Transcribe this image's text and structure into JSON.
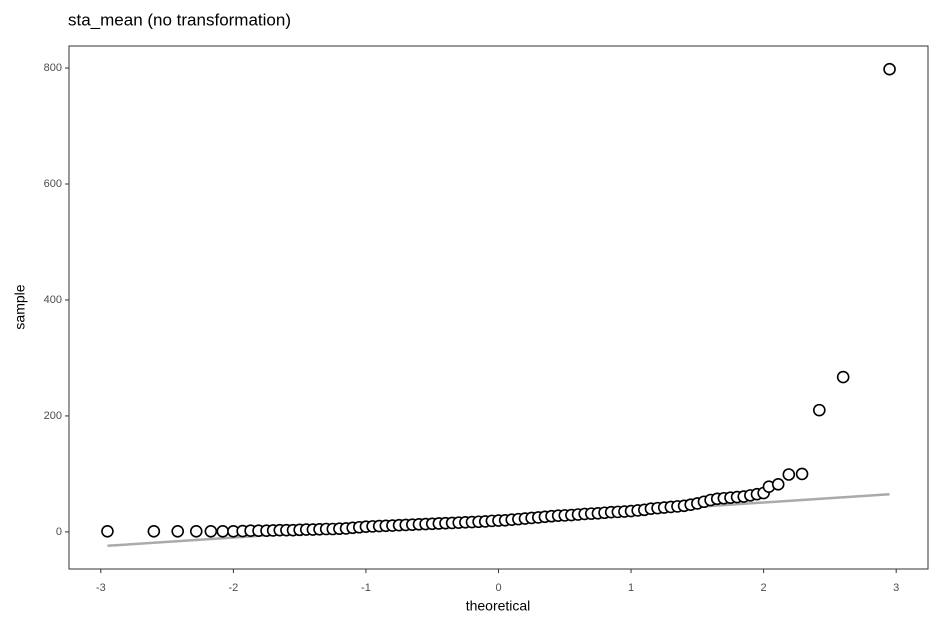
{
  "chart_data": {
    "type": "scatter",
    "title": "sta_mean (no transformation)",
    "x_label": "theoretical",
    "y_label": "sample",
    "x": [
      -2.95,
      -2.6,
      -2.42,
      -2.28,
      -2.17,
      -2.08,
      -2.0,
      -1.93,
      -1.87,
      -1.81,
      -1.75,
      -1.7,
      -1.65,
      -1.6,
      -1.55,
      -1.5,
      -1.45,
      -1.4,
      -1.35,
      -1.3,
      -1.25,
      -1.2,
      -1.15,
      -1.1,
      -1.05,
      -1.0,
      -0.95,
      -0.9,
      -0.85,
      -0.8,
      -0.75,
      -0.7,
      -0.65,
      -0.6,
      -0.55,
      -0.5,
      -0.45,
      -0.4,
      -0.35,
      -0.3,
      -0.25,
      -0.2,
      -0.15,
      -0.1,
      -0.05,
      0,
      0.05,
      0.1,
      0.15,
      0.2,
      0.25,
      0.3,
      0.35,
      0.4,
      0.45,
      0.5,
      0.55,
      0.6,
      0.65,
      0.7,
      0.75,
      0.8,
      0.85,
      0.9,
      0.95,
      1.0,
      1.05,
      1.1,
      1.15,
      1.2,
      1.25,
      1.3,
      1.35,
      1.4,
      1.45,
      1.5,
      1.55,
      1.6,
      1.65,
      1.7,
      1.75,
      1.8,
      1.85,
      1.9,
      1.95,
      2.0,
      2.04,
      2.11,
      2.19,
      2.29,
      2.42,
      2.6,
      2.95
    ],
    "values": [
      1,
      1,
      1,
      1,
      1,
      1,
      1,
      1.5,
      2,
      2,
      2,
      2.5,
      3,
      3,
      3,
      3.5,
      4,
      4,
      4.5,
      5,
      5,
      5.5,
      6,
      7,
      8,
      9,
      9.5,
      10,
      10.5,
      11,
      11.5,
      12,
      12.5,
      13,
      13.5,
      14,
      14.5,
      15,
      15.5,
      16,
      16.5,
      17,
      17.5,
      18,
      19,
      19.5,
      20,
      21,
      22,
      23,
      24,
      25,
      26,
      27,
      28,
      28.5,
      29,
      30,
      31,
      31.5,
      32,
      33,
      34,
      34.5,
      35,
      36,
      37,
      38,
      40,
      41,
      42,
      43,
      44,
      45,
      47,
      49,
      52,
      55,
      57,
      58,
      59,
      60,
      61,
      63,
      65,
      67,
      78,
      82,
      99,
      100,
      210,
      267,
      798
    ],
    "point_color": "#000000",
    "reference_line": {
      "x": [
        -2.95,
        2.95
      ],
      "y": [
        -24,
        65
      ],
      "color": "#aaaaaa"
    },
    "xlim": [
      -3.24,
      3.24
    ],
    "ylim": [
      -64,
      838
    ],
    "xticks": [
      -3,
      -2,
      -1,
      0,
      1,
      2,
      3
    ],
    "yticks": [
      0,
      200,
      400,
      600,
      800
    ]
  }
}
